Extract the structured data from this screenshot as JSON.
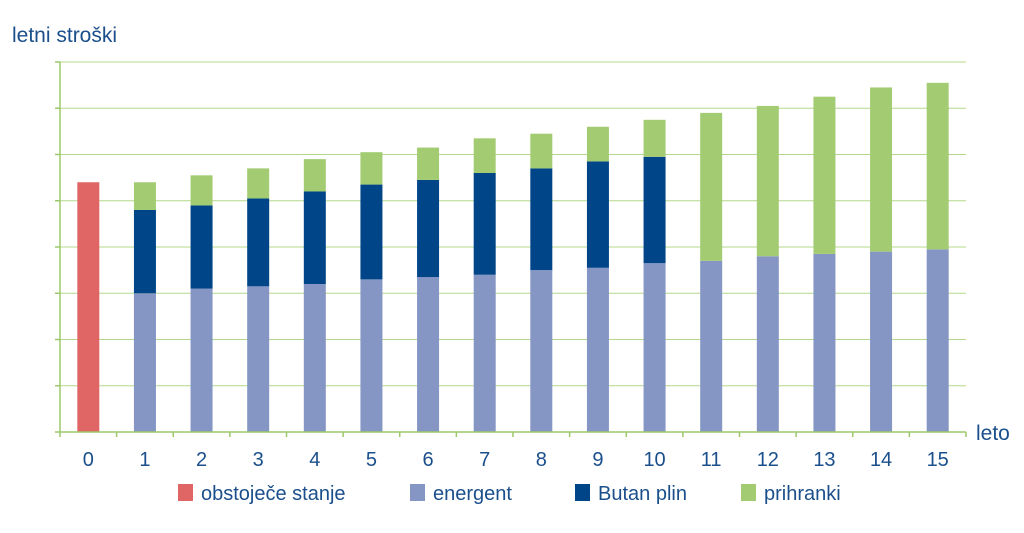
{
  "chart_data": {
    "type": "bar",
    "stacked": true,
    "ylabel": "letni stroški",
    "xlabel": "leto",
    "categories": [
      "0",
      "1",
      "2",
      "3",
      "4",
      "5",
      "6",
      "7",
      "8",
      "9",
      "10",
      "11",
      "12",
      "13",
      "14",
      "15"
    ],
    "ylim": [
      0,
      8
    ],
    "grid": true,
    "legend_position": "bottom",
    "series": [
      {
        "name": "obstoječe stanje",
        "color": "#e06666",
        "values": [
          5.4,
          0,
          0,
          0,
          0,
          0,
          0,
          0,
          0,
          0,
          0,
          0,
          0,
          0,
          0,
          0
        ]
      },
      {
        "name": "energent",
        "color": "#8596c4",
        "values": [
          0,
          3.0,
          3.1,
          3.15,
          3.2,
          3.3,
          3.35,
          3.4,
          3.5,
          3.55,
          3.65,
          3.7,
          3.8,
          3.85,
          3.9,
          3.95
        ]
      },
      {
        "name": "Butan plin",
        "color": "#004588",
        "values": [
          0,
          1.8,
          1.8,
          1.9,
          2.0,
          2.05,
          2.1,
          2.2,
          2.2,
          2.3,
          2.3,
          0,
          0,
          0,
          0,
          0
        ]
      },
      {
        "name": "prihranki",
        "color": "#a3cc72",
        "values": [
          0,
          0.6,
          0.65,
          0.65,
          0.7,
          0.7,
          0.7,
          0.75,
          0.75,
          0.75,
          0.8,
          3.2,
          3.25,
          3.4,
          3.55,
          3.6
        ]
      }
    ]
  }
}
